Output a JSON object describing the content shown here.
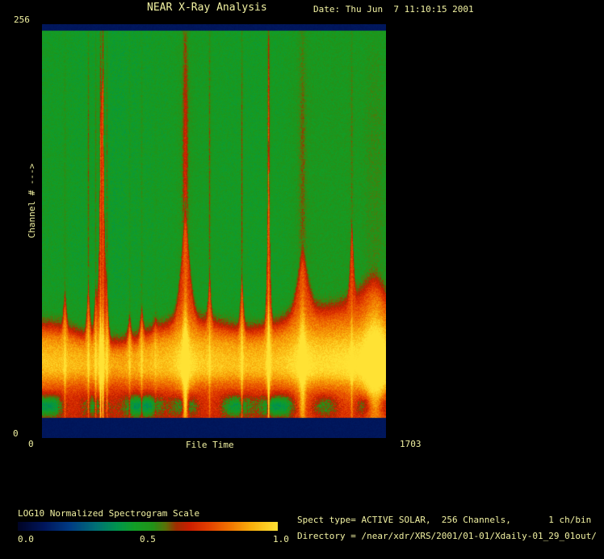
{
  "header": {
    "title": "NEAR X-Ray Analysis",
    "date": "Date: Thu Jun  7 11:10:15 2001"
  },
  "plot": {
    "y_axis_label": "Channel # --->",
    "y_tick_top": "256",
    "y_tick_bottom": "0",
    "x_axis_label": "File Time",
    "x_tick_left": "0",
    "x_tick_right": "1703"
  },
  "colorbar": {
    "label": "LOG10 Normalized Spectrogram Scale",
    "tick_left": "0.0",
    "tick_mid": "0.5",
    "tick_right": "1.0"
  },
  "info": {
    "spect_line": "Spect type= ACTIVE SOLAR,  256 Channels,       1 ch/bin",
    "directory_line": "Directory = /near/xdr/XRS/2001/01-01/Xdaily-01_29_01out/"
  },
  "colors": {
    "background": "#000000",
    "text": "#f2f2a2",
    "edge_band_navy": "#03215c"
  },
  "chart_data": {
    "type": "heatmap",
    "title": "NEAR X-Ray Analysis",
    "xlabel": "File Time",
    "ylabel": "Channel #",
    "xlim": [
      0,
      1703
    ],
    "ylim": [
      0,
      256
    ],
    "channels": 256,
    "channels_per_bin": 1,
    "spect_type": "ACTIVE SOLAR",
    "date": "Thu Jun  7 11:10:15 2001",
    "colorbar": {
      "label": "LOG10 Normalized Spectrogram Scale",
      "range": [
        0.0,
        1.0
      ],
      "ticks": [
        0.0,
        0.5,
        1.0
      ]
    },
    "background_value": 0.465,
    "edge_band_value": 0.1,
    "quiet_band": {
      "center_channel": 45,
      "peak_value": 0.93,
      "note": "persistent bright low-channel emission band across all times"
    },
    "low_channel_green_patches": {
      "center_channel": 20,
      "value": 0.45
    },
    "flare_events": [
      {
        "time": 112,
        "width": 6,
        "amp": 0.4,
        "top": 0.35,
        "band": 0.25
      },
      {
        "time": 228,
        "width": 8,
        "amp": 0.5,
        "top": 0.85,
        "band": 0.3
      },
      {
        "time": 264,
        "width": 8,
        "amp": 0.45,
        "top": 0.7,
        "band": 0.35
      },
      {
        "time": 288,
        "width": 5,
        "amp": 0.85,
        "top": 0.75,
        "band": 0.85
      },
      {
        "time": 300,
        "width": 5,
        "amp": 0.95,
        "top": 1.0,
        "band": 0.45
      },
      {
        "time": 320,
        "width": 6,
        "amp": 0.45,
        "top": 0.75,
        "band": 0.35
      },
      {
        "time": 432,
        "width": 6,
        "amp": 0.28,
        "top": 0.55,
        "band": 0.2
      },
      {
        "time": 492,
        "width": 7,
        "amp": 0.32,
        "top": 0.6,
        "band": 0.25
      },
      {
        "time": 560,
        "width": 10,
        "amp": 0.15,
        "top": 0.4,
        "band": 0.1
      },
      {
        "time": 708,
        "width": 26,
        "amp": 0.75,
        "top": 0.9,
        "band": 0.65
      },
      {
        "time": 828,
        "width": 5,
        "amp": 0.45,
        "top": 0.85,
        "band": 0.18
      },
      {
        "time": 988,
        "width": 8,
        "amp": 0.5,
        "top": 0.85,
        "band": 0.4
      },
      {
        "time": 1120,
        "width": 5,
        "amp": 1.0,
        "top": 1.0,
        "band": 0.9
      },
      {
        "time": 1288,
        "width": 30,
        "amp": 0.55,
        "top": 0.55,
        "band": 0.55
      },
      {
        "time": 1532,
        "width": 5,
        "amp": 0.45,
        "top": 0.5,
        "band": 0.2
      },
      {
        "time": 1648,
        "width": 100,
        "amp": 0.5,
        "top": 0.3,
        "band": 0.8
      }
    ],
    "palette_stops": [
      [
        0.0,
        [
          0,
          4,
          38
        ]
      ],
      [
        0.1,
        [
          0,
          22,
          92
        ]
      ],
      [
        0.2,
        [
          0,
          60,
          132
        ]
      ],
      [
        0.3,
        [
          0,
          112,
          118
        ]
      ],
      [
        0.38,
        [
          0,
          148,
          78
        ]
      ],
      [
        0.45,
        [
          18,
          158,
          38
        ]
      ],
      [
        0.52,
        [
          34,
          146,
          24
        ]
      ],
      [
        0.57,
        [
          92,
          112,
          8
        ]
      ],
      [
        0.61,
        [
          160,
          45,
          0
        ]
      ],
      [
        0.66,
        [
          204,
          30,
          0
        ]
      ],
      [
        0.73,
        [
          226,
          62,
          0
        ]
      ],
      [
        0.81,
        [
          240,
          112,
          0
        ]
      ],
      [
        0.9,
        [
          250,
          176,
          12
        ]
      ],
      [
        1.0,
        [
          255,
          226,
          52
        ]
      ]
    ]
  }
}
